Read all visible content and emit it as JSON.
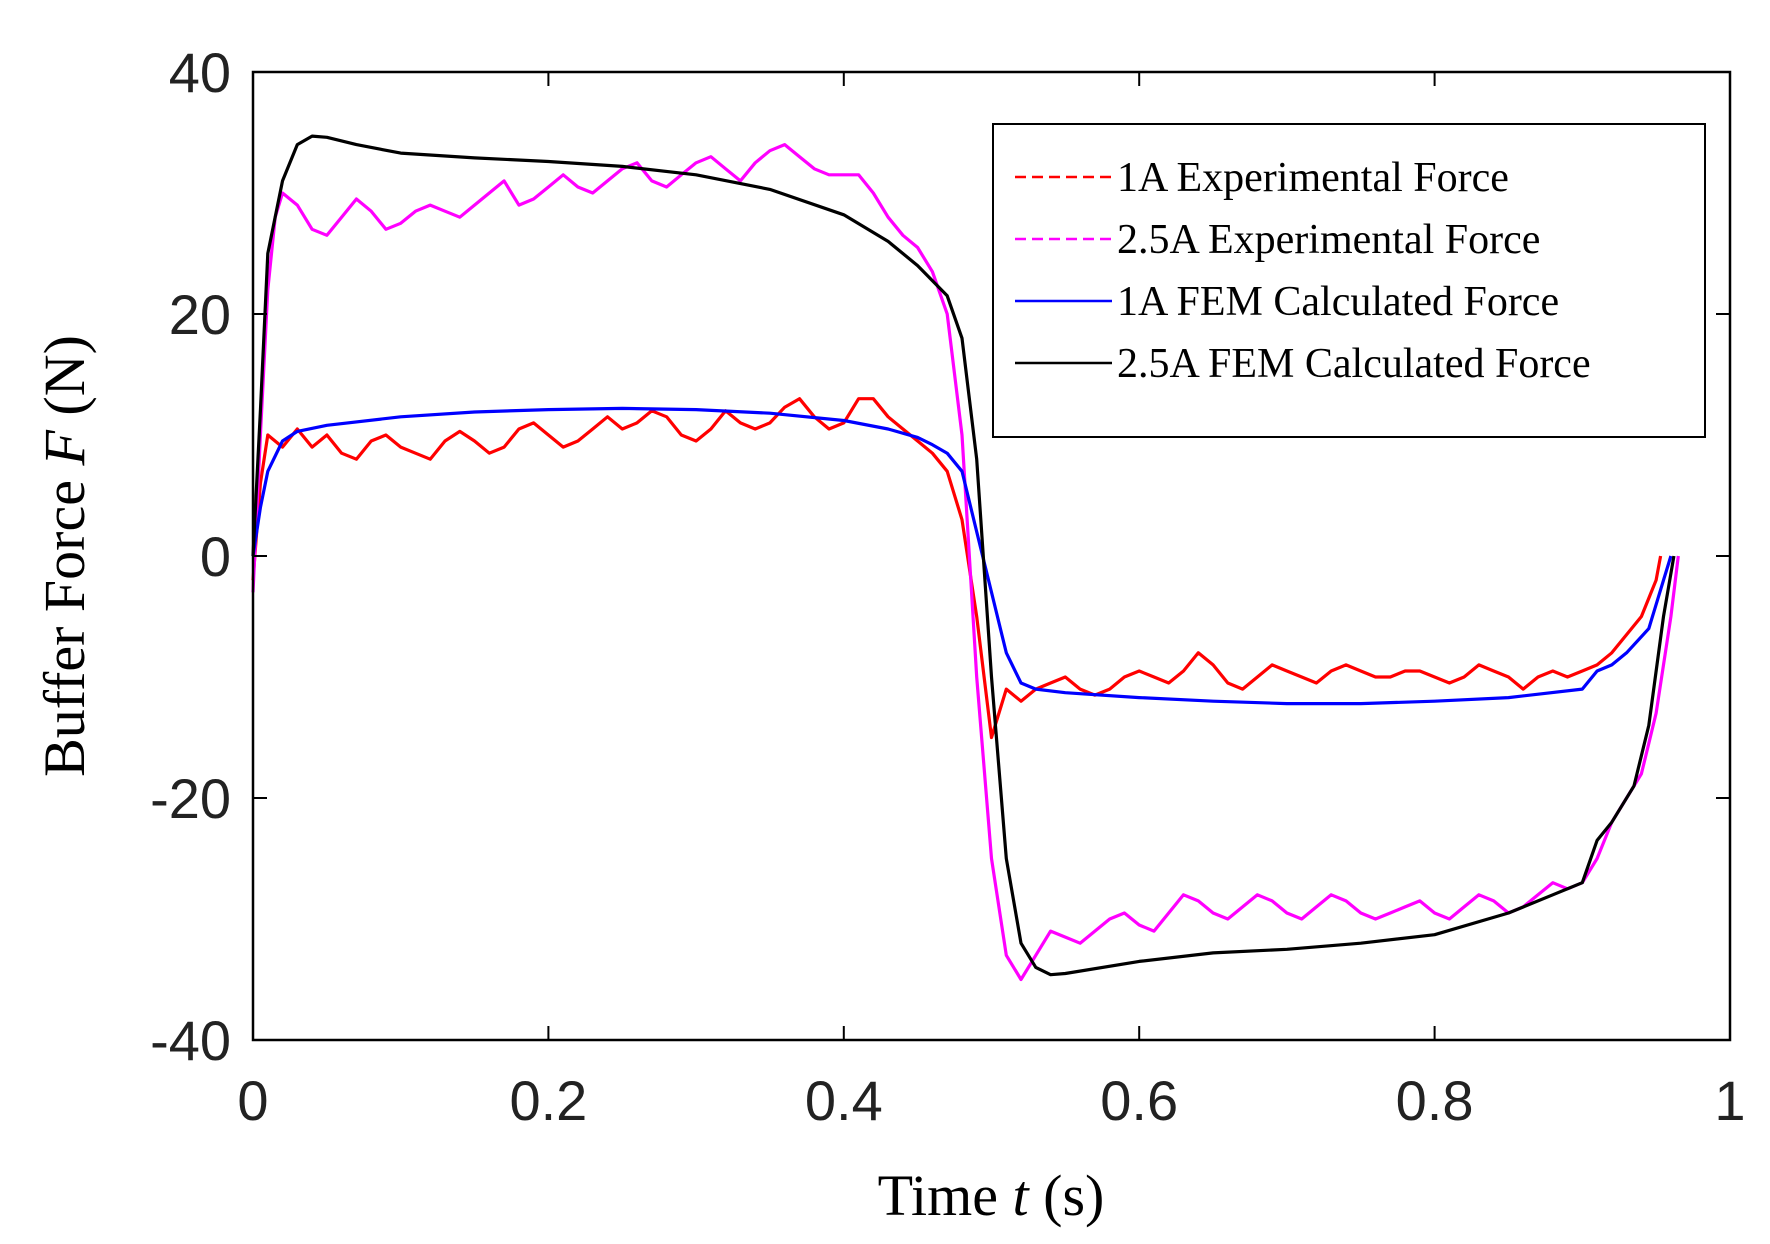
{
  "chart_data": {
    "type": "line",
    "title": "",
    "xlabel": "Time t (s)",
    "xlabel_parts": [
      "Time ",
      "t",
      " (s)"
    ],
    "ylabel": "Buffer Force F (N)",
    "ylabel_parts": [
      "Buffer Force ",
      "F",
      " (N)"
    ],
    "xlim": [
      0,
      1
    ],
    "ylim": [
      -40,
      40
    ],
    "xticks": [
      0,
      0.2,
      0.4,
      0.6,
      0.8,
      1
    ],
    "xtick_labels": [
      "0",
      "0.2",
      "0.4",
      "0.6",
      "0.8",
      "1"
    ],
    "yticks": [
      -40,
      -20,
      0,
      20,
      40
    ],
    "ytick_labels": [
      "-40",
      "-20",
      "0",
      "20",
      "40"
    ],
    "grid": false,
    "legend_position": "top-right",
    "series": [
      {
        "name": "1A Experimental Force",
        "color": "#ff0000",
        "style": "dashed",
        "points": [
          [
            0,
            -2
          ],
          [
            0.005,
            6
          ],
          [
            0.01,
            10
          ],
          [
            0.02,
            9
          ],
          [
            0.03,
            10.5
          ],
          [
            0.04,
            9
          ],
          [
            0.05,
            10
          ],
          [
            0.06,
            8.5
          ],
          [
            0.07,
            8
          ],
          [
            0.08,
            9.5
          ],
          [
            0.09,
            10
          ],
          [
            0.1,
            9
          ],
          [
            0.11,
            8.5
          ],
          [
            0.12,
            8
          ],
          [
            0.13,
            9.5
          ],
          [
            0.14,
            10.3
          ],
          [
            0.15,
            9.5
          ],
          [
            0.16,
            8.5
          ],
          [
            0.17,
            9
          ],
          [
            0.18,
            10.5
          ],
          [
            0.19,
            11
          ],
          [
            0.2,
            10
          ],
          [
            0.21,
            9
          ],
          [
            0.22,
            9.5
          ],
          [
            0.23,
            10.5
          ],
          [
            0.24,
            11.5
          ],
          [
            0.25,
            10.5
          ],
          [
            0.26,
            11
          ],
          [
            0.27,
            12
          ],
          [
            0.28,
            11.5
          ],
          [
            0.29,
            10
          ],
          [
            0.3,
            9.5
          ],
          [
            0.31,
            10.5
          ],
          [
            0.32,
            12
          ],
          [
            0.33,
            11
          ],
          [
            0.34,
            10.5
          ],
          [
            0.35,
            11
          ],
          [
            0.36,
            12.3
          ],
          [
            0.37,
            13
          ],
          [
            0.38,
            11.5
          ],
          [
            0.39,
            10.5
          ],
          [
            0.4,
            11
          ],
          [
            0.41,
            13
          ],
          [
            0.42,
            13
          ],
          [
            0.43,
            11.5
          ],
          [
            0.44,
            10.5
          ],
          [
            0.45,
            9.5
          ],
          [
            0.46,
            8.5
          ],
          [
            0.47,
            7
          ],
          [
            0.48,
            3
          ],
          [
            0.49,
            -5
          ],
          [
            0.5,
            -15
          ],
          [
            0.51,
            -11
          ],
          [
            0.52,
            -12
          ],
          [
            0.53,
            -11
          ],
          [
            0.54,
            -10.5
          ],
          [
            0.55,
            -10
          ],
          [
            0.56,
            -11
          ],
          [
            0.57,
            -11.5
          ],
          [
            0.58,
            -11
          ],
          [
            0.59,
            -10
          ],
          [
            0.6,
            -9.5
          ],
          [
            0.61,
            -10
          ],
          [
            0.62,
            -10.5
          ],
          [
            0.63,
            -9.5
          ],
          [
            0.64,
            -8
          ],
          [
            0.65,
            -9
          ],
          [
            0.66,
            -10.5
          ],
          [
            0.67,
            -11
          ],
          [
            0.68,
            -10
          ],
          [
            0.69,
            -9
          ],
          [
            0.7,
            -9.5
          ],
          [
            0.71,
            -10
          ],
          [
            0.72,
            -10.5
          ],
          [
            0.73,
            -9.5
          ],
          [
            0.74,
            -9
          ],
          [
            0.75,
            -9.5
          ],
          [
            0.76,
            -10
          ],
          [
            0.77,
            -10
          ],
          [
            0.78,
            -9.5
          ],
          [
            0.79,
            -9.5
          ],
          [
            0.8,
            -10
          ],
          [
            0.81,
            -10.5
          ],
          [
            0.82,
            -10
          ],
          [
            0.83,
            -9
          ],
          [
            0.84,
            -9.5
          ],
          [
            0.85,
            -10
          ],
          [
            0.86,
            -11
          ],
          [
            0.87,
            -10
          ],
          [
            0.88,
            -9.5
          ],
          [
            0.89,
            -10
          ],
          [
            0.9,
            -9.5
          ],
          [
            0.91,
            -9
          ],
          [
            0.92,
            -8
          ],
          [
            0.93,
            -6.5
          ],
          [
            0.94,
            -5
          ],
          [
            0.95,
            -2
          ],
          [
            0.953,
            0
          ]
        ]
      },
      {
        "name": "2.5A Experimental Force",
        "color": "#ff00ff",
        "style": "dashed",
        "points": [
          [
            0,
            -3
          ],
          [
            0.005,
            10
          ],
          [
            0.01,
            22
          ],
          [
            0.015,
            28
          ],
          [
            0.02,
            30
          ],
          [
            0.03,
            29
          ],
          [
            0.04,
            27
          ],
          [
            0.05,
            26.5
          ],
          [
            0.06,
            28
          ],
          [
            0.07,
            29.5
          ],
          [
            0.08,
            28.5
          ],
          [
            0.09,
            27
          ],
          [
            0.1,
            27.5
          ],
          [
            0.11,
            28.5
          ],
          [
            0.12,
            29
          ],
          [
            0.13,
            28.5
          ],
          [
            0.14,
            28
          ],
          [
            0.15,
            29
          ],
          [
            0.16,
            30
          ],
          [
            0.17,
            31
          ],
          [
            0.18,
            29
          ],
          [
            0.19,
            29.5
          ],
          [
            0.2,
            30.5
          ],
          [
            0.21,
            31.5
          ],
          [
            0.22,
            30.5
          ],
          [
            0.23,
            30
          ],
          [
            0.24,
            31
          ],
          [
            0.25,
            32
          ],
          [
            0.26,
            32.5
          ],
          [
            0.27,
            31
          ],
          [
            0.28,
            30.5
          ],
          [
            0.29,
            31.5
          ],
          [
            0.3,
            32.5
          ],
          [
            0.31,
            33
          ],
          [
            0.32,
            32
          ],
          [
            0.33,
            31
          ],
          [
            0.34,
            32.5
          ],
          [
            0.35,
            33.5
          ],
          [
            0.36,
            34
          ],
          [
            0.37,
            33
          ],
          [
            0.38,
            32
          ],
          [
            0.39,
            31.5
          ],
          [
            0.4,
            31.5
          ],
          [
            0.41,
            31.5
          ],
          [
            0.42,
            30
          ],
          [
            0.43,
            28
          ],
          [
            0.44,
            26.5
          ],
          [
            0.45,
            25.5
          ],
          [
            0.46,
            23.5
          ],
          [
            0.47,
            20
          ],
          [
            0.48,
            10
          ],
          [
            0.49,
            -10
          ],
          [
            0.5,
            -25
          ],
          [
            0.51,
            -33
          ],
          [
            0.52,
            -35
          ],
          [
            0.53,
            -33
          ],
          [
            0.54,
            -31
          ],
          [
            0.55,
            -31.5
          ],
          [
            0.56,
            -32
          ],
          [
            0.57,
            -31
          ],
          [
            0.58,
            -30
          ],
          [
            0.59,
            -29.5
          ],
          [
            0.6,
            -30.5
          ],
          [
            0.61,
            -31
          ],
          [
            0.62,
            -29.5
          ],
          [
            0.63,
            -28
          ],
          [
            0.64,
            -28.5
          ],
          [
            0.65,
            -29.5
          ],
          [
            0.66,
            -30
          ],
          [
            0.67,
            -29
          ],
          [
            0.68,
            -28
          ],
          [
            0.69,
            -28.5
          ],
          [
            0.7,
            -29.5
          ],
          [
            0.71,
            -30
          ],
          [
            0.72,
            -29
          ],
          [
            0.73,
            -28
          ],
          [
            0.74,
            -28.5
          ],
          [
            0.75,
            -29.5
          ],
          [
            0.76,
            -30
          ],
          [
            0.77,
            -29.5
          ],
          [
            0.78,
            -29
          ],
          [
            0.79,
            -28.5
          ],
          [
            0.8,
            -29.5
          ],
          [
            0.81,
            -30
          ],
          [
            0.82,
            -29
          ],
          [
            0.83,
            -28
          ],
          [
            0.84,
            -28.5
          ],
          [
            0.85,
            -29.5
          ],
          [
            0.86,
            -29
          ],
          [
            0.87,
            -28
          ],
          [
            0.88,
            -27
          ],
          [
            0.89,
            -27.5
          ],
          [
            0.9,
            -27
          ],
          [
            0.91,
            -25
          ],
          [
            0.92,
            -22
          ],
          [
            0.93,
            -20
          ],
          [
            0.94,
            -18
          ],
          [
            0.95,
            -13
          ],
          [
            0.96,
            -5
          ],
          [
            0.965,
            0
          ]
        ]
      },
      {
        "name": "1A FEM Calculated Force",
        "color": "#0000ff",
        "style": "solid",
        "points": [
          [
            0,
            0
          ],
          [
            0.005,
            4
          ],
          [
            0.01,
            7
          ],
          [
            0.02,
            9.5
          ],
          [
            0.03,
            10.3
          ],
          [
            0.05,
            10.8
          ],
          [
            0.1,
            11.5
          ],
          [
            0.15,
            11.9
          ],
          [
            0.2,
            12.1
          ],
          [
            0.25,
            12.2
          ],
          [
            0.3,
            12.1
          ],
          [
            0.35,
            11.8
          ],
          [
            0.4,
            11.2
          ],
          [
            0.43,
            10.5
          ],
          [
            0.45,
            9.8
          ],
          [
            0.46,
            9.2
          ],
          [
            0.47,
            8.5
          ],
          [
            0.48,
            7
          ],
          [
            0.49,
            2
          ],
          [
            0.5,
            -3
          ],
          [
            0.51,
            -8
          ],
          [
            0.52,
            -10.5
          ],
          [
            0.53,
            -11
          ],
          [
            0.55,
            -11.3
          ],
          [
            0.6,
            -11.7
          ],
          [
            0.65,
            -12
          ],
          [
            0.7,
            -12.2
          ],
          [
            0.75,
            -12.2
          ],
          [
            0.8,
            -12
          ],
          [
            0.85,
            -11.7
          ],
          [
            0.9,
            -11
          ],
          [
            0.91,
            -9.5
          ],
          [
            0.92,
            -9
          ],
          [
            0.93,
            -8
          ],
          [
            0.945,
            -6
          ],
          [
            0.955,
            -2
          ],
          [
            0.96,
            0
          ]
        ]
      },
      {
        "name": "2.5A FEM Calculated Force",
        "color": "#000000",
        "style": "solid",
        "points": [
          [
            0,
            0
          ],
          [
            0.005,
            12
          ],
          [
            0.01,
            25
          ],
          [
            0.02,
            31
          ],
          [
            0.03,
            34
          ],
          [
            0.04,
            34.7
          ],
          [
            0.05,
            34.6
          ],
          [
            0.07,
            34
          ],
          [
            0.1,
            33.3
          ],
          [
            0.15,
            32.9
          ],
          [
            0.2,
            32.6
          ],
          [
            0.25,
            32.2
          ],
          [
            0.3,
            31.5
          ],
          [
            0.35,
            30.3
          ],
          [
            0.4,
            28.2
          ],
          [
            0.43,
            26
          ],
          [
            0.45,
            24
          ],
          [
            0.47,
            21.5
          ],
          [
            0.48,
            18
          ],
          [
            0.49,
            8
          ],
          [
            0.5,
            -10
          ],
          [
            0.51,
            -25
          ],
          [
            0.52,
            -32
          ],
          [
            0.53,
            -34
          ],
          [
            0.54,
            -34.6
          ],
          [
            0.55,
            -34.5
          ],
          [
            0.6,
            -33.5
          ],
          [
            0.65,
            -32.8
          ],
          [
            0.7,
            -32.5
          ],
          [
            0.75,
            -32
          ],
          [
            0.8,
            -31.3
          ],
          [
            0.85,
            -29.5
          ],
          [
            0.88,
            -28
          ],
          [
            0.9,
            -27
          ],
          [
            0.91,
            -23.5
          ],
          [
            0.92,
            -22
          ],
          [
            0.935,
            -19
          ],
          [
            0.945,
            -14
          ],
          [
            0.955,
            -5
          ],
          [
            0.962,
            0
          ]
        ]
      }
    ]
  }
}
